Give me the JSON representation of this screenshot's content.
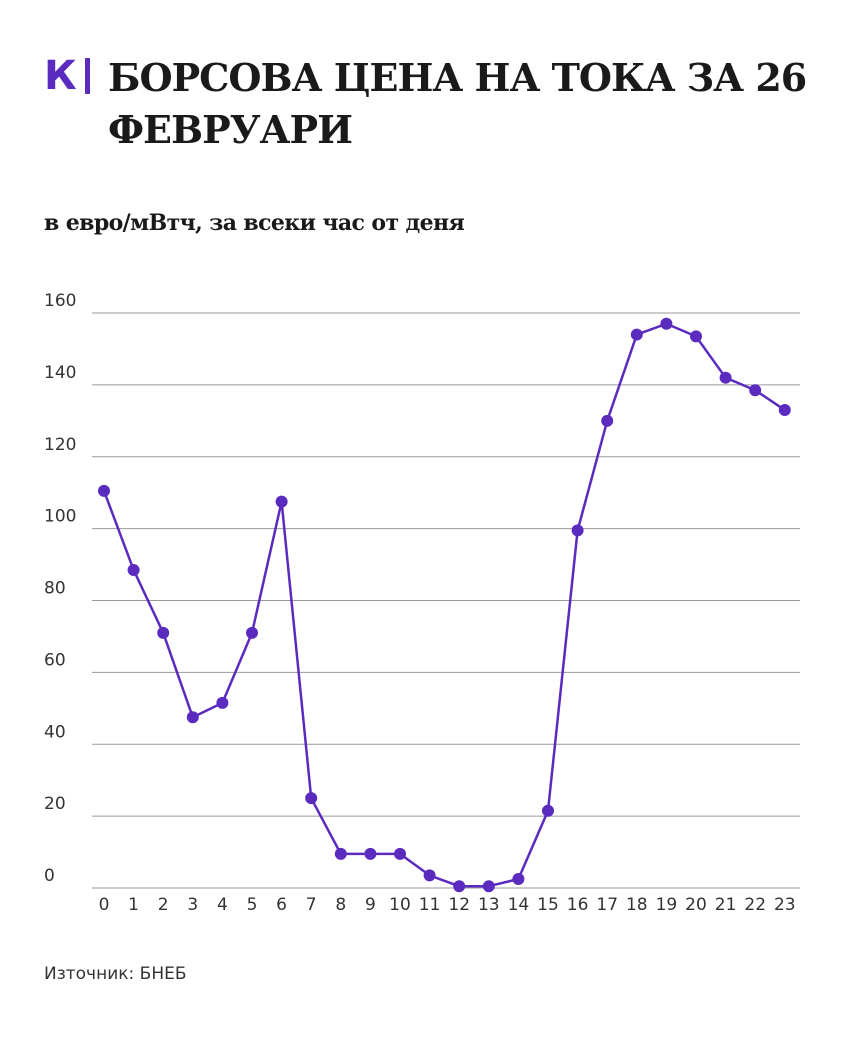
{
  "logo": {
    "letter": "К"
  },
  "header": {
    "title": "БОРСОВА ЦЕНА НА ТОКА ЗА 26 ФЕВРУАРИ",
    "subtitle": "в евро/мВтч, за всеки час от деня"
  },
  "footer": {
    "source_label": "Източник:",
    "source_value": "БНЕБ"
  },
  "colors": {
    "accent": "#5b2bbf",
    "line": "#5b2bbf",
    "grid": "#9a9a9a",
    "text": "#1a1a1a"
  },
  "chart_data": {
    "type": "line",
    "title": "БОРСОВА ЦЕНА НА ТОКА ЗА 26 ФЕВРУАРИ",
    "subtitle": "в евро/мВтч, за всеки час от деня",
    "xlabel": "",
    "ylabel": "",
    "ylim": [
      0,
      160
    ],
    "yticks": [
      0,
      20,
      40,
      60,
      80,
      100,
      120,
      140,
      160
    ],
    "grid": true,
    "categories": [
      "0",
      "1",
      "2",
      "3",
      "4",
      "5",
      "6",
      "7",
      "8",
      "9",
      "10",
      "11",
      "12",
      "13",
      "14",
      "15",
      "16",
      "17",
      "18",
      "19",
      "20",
      "21",
      "22",
      "23"
    ],
    "series": [
      {
        "values": [
          110.5,
          88.5,
          71,
          47.5,
          51.5,
          71,
          107.5,
          25,
          9.5,
          9.5,
          9.5,
          3.5,
          0.5,
          0.5,
          2.5,
          21.5,
          99.5,
          130,
          154,
          157,
          153.5,
          142,
          138.5,
          133
        ]
      }
    ]
  }
}
